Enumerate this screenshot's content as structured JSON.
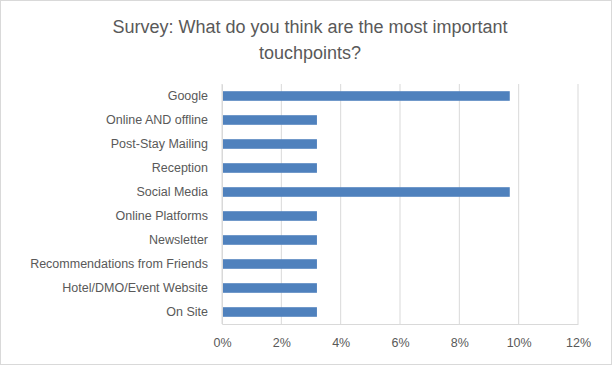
{
  "chart_data": {
    "type": "bar",
    "orientation": "horizontal",
    "title": "Survey: What do you think are the most important touchpoints?",
    "categories": [
      "Google",
      "Online AND offline",
      "Post-Stay Mailing",
      "Reception",
      "Social Media",
      "Online Platforms",
      "Newsletter",
      "Recommendations from Friends",
      "Hotel/DMO/Event Website",
      "On Site"
    ],
    "values": [
      9.7,
      3.2,
      3.2,
      3.2,
      9.7,
      3.2,
      3.2,
      3.2,
      3.2,
      3.2
    ],
    "color": "#4f81bd",
    "xlim": [
      0,
      12
    ],
    "xticks": [
      {
        "value": 0,
        "label": "0%"
      },
      {
        "value": 2,
        "label": "2%"
      },
      {
        "value": 4,
        "label": "4%"
      },
      {
        "value": 6,
        "label": "6%"
      },
      {
        "value": 8,
        "label": "8%"
      },
      {
        "value": 10,
        "label": "10%"
      },
      {
        "value": 12,
        "label": "12%"
      }
    ],
    "grid": true
  }
}
